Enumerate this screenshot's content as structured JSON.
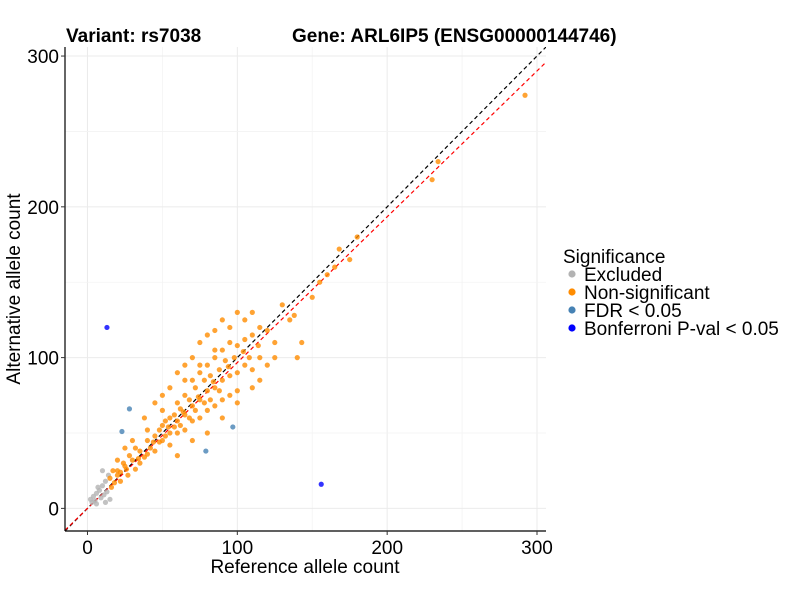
{
  "chart_data": {
    "type": "scatter",
    "title_variant": "Variant: rs7038",
    "title_gene": "Gene: ARL6IP5 (ENSG00000144746)",
    "xlabel": "Reference allele count",
    "ylabel": "Alternative allele count",
    "xlim": [
      -15,
      306
    ],
    "ylim": [
      -15,
      306
    ],
    "xticks": [
      "0",
      "100",
      "200",
      "300"
    ],
    "yticks": [
      "0",
      "100",
      "200",
      "300"
    ],
    "xtick_values": [
      0,
      100,
      200,
      300
    ],
    "ytick_values": [
      0,
      100,
      200,
      300
    ],
    "grid": true,
    "reference_lines": [
      {
        "name": "identity",
        "slope": 1.0,
        "color": "#000000"
      },
      {
        "name": "fit",
        "slope": 0.967,
        "color": "#ff0000"
      }
    ],
    "legend": {
      "title": "Significance",
      "placement": "right"
    },
    "series": [
      {
        "name": "Excluded",
        "color": "#b3b3b3",
        "points": [
          [
            2,
            6
          ],
          [
            4,
            8
          ],
          [
            5,
            5
          ],
          [
            6,
            10
          ],
          [
            8,
            12
          ],
          [
            9,
            7
          ],
          [
            10,
            15
          ],
          [
            11,
            9
          ],
          [
            12,
            18
          ],
          [
            7,
            14
          ],
          [
            13,
            11
          ],
          [
            3,
            4
          ],
          [
            14,
            22
          ],
          [
            10,
            25
          ],
          [
            15,
            6
          ],
          [
            12,
            4
          ],
          [
            6,
            3
          ]
        ]
      },
      {
        "name": "Non-significant",
        "color": "#ff8c00",
        "points": [
          [
            15,
            20
          ],
          [
            18,
            17
          ],
          [
            20,
            25
          ],
          [
            22,
            18
          ],
          [
            25,
            28
          ],
          [
            27,
            22
          ],
          [
            30,
            32
          ],
          [
            32,
            26
          ],
          [
            35,
            38
          ],
          [
            35,
            30
          ],
          [
            38,
            34
          ],
          [
            40,
            45
          ],
          [
            40,
            36
          ],
          [
            42,
            40
          ],
          [
            45,
            48
          ],
          [
            45,
            38
          ],
          [
            48,
            52
          ],
          [
            48,
            44
          ],
          [
            50,
            55
          ],
          [
            50,
            45
          ],
          [
            52,
            58
          ],
          [
            52,
            48
          ],
          [
            55,
            60
          ],
          [
            55,
            50
          ],
          [
            55,
            42
          ],
          [
            58,
            62
          ],
          [
            58,
            54
          ],
          [
            60,
            70
          ],
          [
            60,
            58
          ],
          [
            60,
            50
          ],
          [
            62,
            66
          ],
          [
            62,
            55
          ],
          [
            65,
            75
          ],
          [
            65,
            62
          ],
          [
            65,
            52
          ],
          [
            68,
            72
          ],
          [
            68,
            60
          ],
          [
            70,
            85
          ],
          [
            70,
            68
          ],
          [
            70,
            58
          ],
          [
            72,
            80
          ],
          [
            72,
            65
          ],
          [
            75,
            90
          ],
          [
            75,
            72
          ],
          [
            75,
            60
          ],
          [
            78,
            85
          ],
          [
            78,
            70
          ],
          [
            80,
            95
          ],
          [
            80,
            78
          ],
          [
            80,
            65
          ],
          [
            82,
            88
          ],
          [
            82,
            72
          ],
          [
            85,
            100
          ],
          [
            85,
            80
          ],
          [
            85,
            68
          ],
          [
            88,
            92
          ],
          [
            88,
            78
          ],
          [
            90,
            105
          ],
          [
            90,
            85
          ],
          [
            90,
            72
          ],
          [
            92,
            98
          ],
          [
            95,
            110
          ],
          [
            95,
            88
          ],
          [
            95,
            75
          ],
          [
            98,
            100
          ],
          [
            100,
            108
          ],
          [
            100,
            90
          ],
          [
            100,
            78
          ],
          [
            105,
            112
          ],
          [
            105,
            95
          ],
          [
            108,
            100
          ],
          [
            110,
            115
          ],
          [
            110,
            92
          ],
          [
            115,
            120
          ],
          [
            115,
            100
          ],
          [
            120,
            118
          ],
          [
            125,
            110
          ],
          [
            130,
            135
          ],
          [
            135,
            125
          ],
          [
            140,
            100
          ],
          [
            143,
            110
          ],
          [
            138,
            128
          ],
          [
            150,
            140
          ],
          [
            155,
            150
          ],
          [
            160,
            155
          ],
          [
            165,
            160
          ],
          [
            168,
            172
          ],
          [
            180,
            180
          ],
          [
            175,
            165
          ],
          [
            230,
            218
          ],
          [
            234,
            230
          ],
          [
            292,
            274
          ],
          [
            45,
            70
          ],
          [
            50,
            75
          ],
          [
            55,
            80
          ],
          [
            60,
            90
          ],
          [
            65,
            95
          ],
          [
            38,
            60
          ],
          [
            30,
            45
          ],
          [
            25,
            40
          ],
          [
            20,
            32
          ],
          [
            70,
            100
          ],
          [
            75,
            110
          ],
          [
            80,
            115
          ],
          [
            85,
            118
          ],
          [
            90,
            125
          ],
          [
            100,
            130
          ],
          [
            60,
            35
          ],
          [
            70,
            45
          ],
          [
            80,
            50
          ],
          [
            90,
            60
          ],
          [
            100,
            70
          ],
          [
            110,
            80
          ],
          [
            115,
            85
          ],
          [
            120,
            95
          ],
          [
            125,
            100
          ],
          [
            105,
            125
          ],
          [
            110,
            130
          ],
          [
            95,
            120
          ],
          [
            85,
            105
          ],
          [
            75,
            95
          ],
          [
            65,
            85
          ],
          [
            50,
            65
          ],
          [
            40,
            52
          ],
          [
            32,
            40
          ],
          [
            28,
            35
          ],
          [
            24,
            30
          ],
          [
            20,
            22
          ],
          [
            17,
            25
          ],
          [
            16,
            14
          ],
          [
            22,
            24
          ],
          [
            26,
            26
          ],
          [
            34,
            33
          ],
          [
            44,
            44
          ],
          [
            54,
            54
          ],
          [
            64,
            64
          ],
          [
            74,
            74
          ],
          [
            84,
            84
          ],
          [
            94,
            94
          ],
          [
            104,
            104
          ],
          [
            114,
            108
          ]
        ]
      },
      {
        "name": "FDR < 0.05",
        "color": "#4682b4",
        "points": [
          [
            28,
            66
          ],
          [
            23,
            51
          ],
          [
            79,
            38
          ],
          [
            97,
            54
          ]
        ]
      },
      {
        "name": "Bonferroni P-val < 0.05",
        "color": "#0000ff",
        "points": [
          [
            13,
            120
          ],
          [
            156,
            16
          ]
        ]
      }
    ]
  }
}
